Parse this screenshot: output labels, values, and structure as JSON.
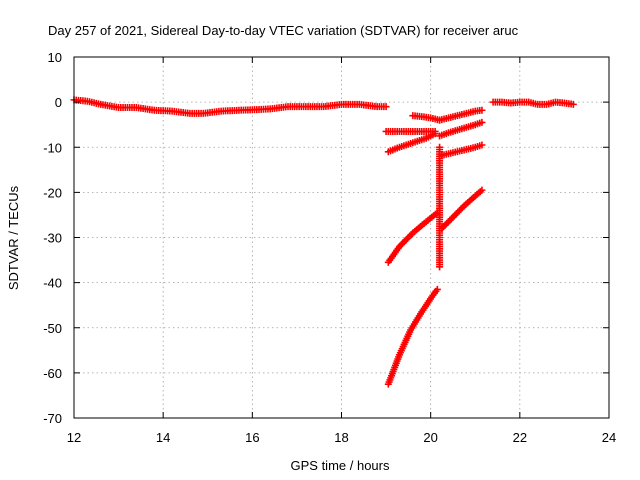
{
  "chart_data": {
    "type": "scatter",
    "title": "Day 257 of 2021, Sidereal Day-to-day VTEC variation (SDTVAR) for receiver aruc",
    "xlabel": "GPS time / hours",
    "ylabel": "SDTVAR / TECUs",
    "xlim": [
      12,
      24
    ],
    "ylim": [
      -70,
      10
    ],
    "xticks": [
      12,
      14,
      16,
      18,
      20,
      22,
      24
    ],
    "yticks": [
      10,
      0,
      -10,
      -20,
      -30,
      -40,
      -50,
      -60,
      -70
    ],
    "grid": true,
    "marker": "+",
    "color": "#ff0000",
    "segments": [
      {
        "x": [
          12.0,
          12.3,
          12.6,
          13.0,
          13.4,
          13.8,
          14.2,
          14.6,
          14.9,
          15.3,
          15.7,
          16.0,
          16.4,
          16.8,
          17.2,
          17.6,
          18.0,
          18.4,
          18.8,
          19.0
        ],
        "y": [
          0.5,
          0.2,
          -0.5,
          -1.2,
          -1.2,
          -1.8,
          -2.0,
          -2.5,
          -2.5,
          -2.0,
          -1.8,
          -1.7,
          -1.5,
          -1.0,
          -1.0,
          -1.0,
          -0.5,
          -0.5,
          -1.0,
          -1.0
        ]
      },
      {
        "x": [
          21.4,
          21.6,
          21.8,
          22.0,
          22.2,
          22.4,
          22.6,
          22.8,
          23.0,
          23.2
        ],
        "y": [
          0.0,
          0.0,
          -0.2,
          0.0,
          0.0,
          -0.5,
          -0.5,
          0.0,
          -0.2,
          -0.5
        ]
      },
      {
        "x": [
          19.0,
          19.3,
          19.6,
          19.9,
          20.1
        ],
        "y": [
          -6.5,
          -6.5,
          -6.5,
          -6.5,
          -6.5
        ]
      },
      {
        "x": [
          19.6,
          19.8,
          20.0,
          20.2
        ],
        "y": [
          -3.0,
          -3.2,
          -3.5,
          -4.0
        ]
      },
      {
        "x": [
          19.05,
          19.3,
          19.6,
          19.9,
          20.1
        ],
        "y": [
          -11.0,
          -10.0,
          -9.0,
          -8.0,
          -7.0
        ]
      },
      {
        "x": [
          20.2,
          20.4,
          20.6,
          20.8,
          21.0,
          21.15
        ],
        "y": [
          -4.0,
          -3.5,
          -3.0,
          -2.5,
          -2.0,
          -1.8
        ]
      },
      {
        "x": [
          20.2,
          20.4,
          20.6,
          20.8,
          21.0,
          21.15
        ],
        "y": [
          -7.5,
          -6.8,
          -6.2,
          -5.6,
          -5.0,
          -4.5
        ]
      },
      {
        "x": [
          20.25,
          20.5,
          20.75,
          21.0,
          21.15
        ],
        "y": [
          -11.8,
          -11.2,
          -10.6,
          -10.0,
          -9.5
        ]
      },
      {
        "x": [
          19.05,
          19.3,
          19.6,
          19.9,
          20.15
        ],
        "y": [
          -35.5,
          -32.0,
          -29.0,
          -26.5,
          -24.5
        ]
      },
      {
        "x": [
          20.25,
          20.5,
          20.75,
          21.0,
          21.15
        ],
        "y": [
          -28.0,
          -25.5,
          -23.0,
          -20.8,
          -19.5
        ]
      },
      {
        "x": [
          19.05,
          19.3,
          19.55,
          19.8,
          20.05,
          20.15
        ],
        "y": [
          -62.5,
          -56.0,
          -50.5,
          -46.5,
          -42.8,
          -41.5
        ]
      },
      {
        "x": [
          20.2,
          20.2,
          20.2,
          20.2,
          20.2,
          20.2
        ],
        "y": [
          -10.0,
          -12.0,
          -13.5,
          -27.0,
          -30.5,
          -36.5
        ]
      }
    ]
  }
}
